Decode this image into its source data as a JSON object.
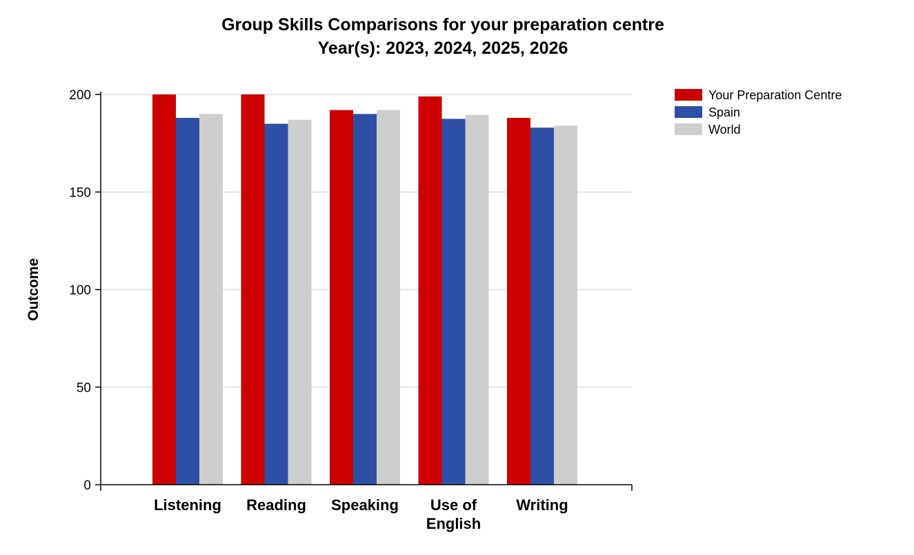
{
  "chart_data": {
    "type": "bar",
    "title": "Group Skills Comparisons for your preparation centre",
    "subtitle": "Year(s): 2023, 2024, 2025, 2026",
    "xlabel": "",
    "ylabel": "Outcome",
    "ylim": [
      0,
      200
    ],
    "yticks": [
      {
        "value": 0,
        "label": "0"
      },
      {
        "value": 50,
        "label": "50"
      },
      {
        "value": 100,
        "label": "100"
      },
      {
        "value": 150,
        "label": "150"
      },
      {
        "value": 200,
        "label": "200"
      }
    ],
    "grid": true,
    "legend_position": "top-right",
    "categories": [
      {
        "name": "Listening",
        "label_lines": [
          "Listening"
        ]
      },
      {
        "name": "Reading",
        "label_lines": [
          "Reading"
        ]
      },
      {
        "name": "Speaking",
        "label_lines": [
          "Speaking"
        ]
      },
      {
        "name": "Use of English",
        "label_lines": [
          "Use of",
          "English"
        ]
      },
      {
        "name": "Writing",
        "label_lines": [
          "Writing"
        ]
      }
    ],
    "series": [
      {
        "name": "Your Preparation Centre",
        "color": "#cc0000",
        "values": [
          200,
          200,
          192,
          199,
          188
        ]
      },
      {
        "name": "Spain",
        "color": "#2e4fa6",
        "values": [
          188,
          185,
          190,
          187.5,
          183
        ]
      },
      {
        "name": "World",
        "color": "#cecece",
        "values": [
          190,
          187,
          192,
          189.5,
          184
        ]
      }
    ]
  }
}
